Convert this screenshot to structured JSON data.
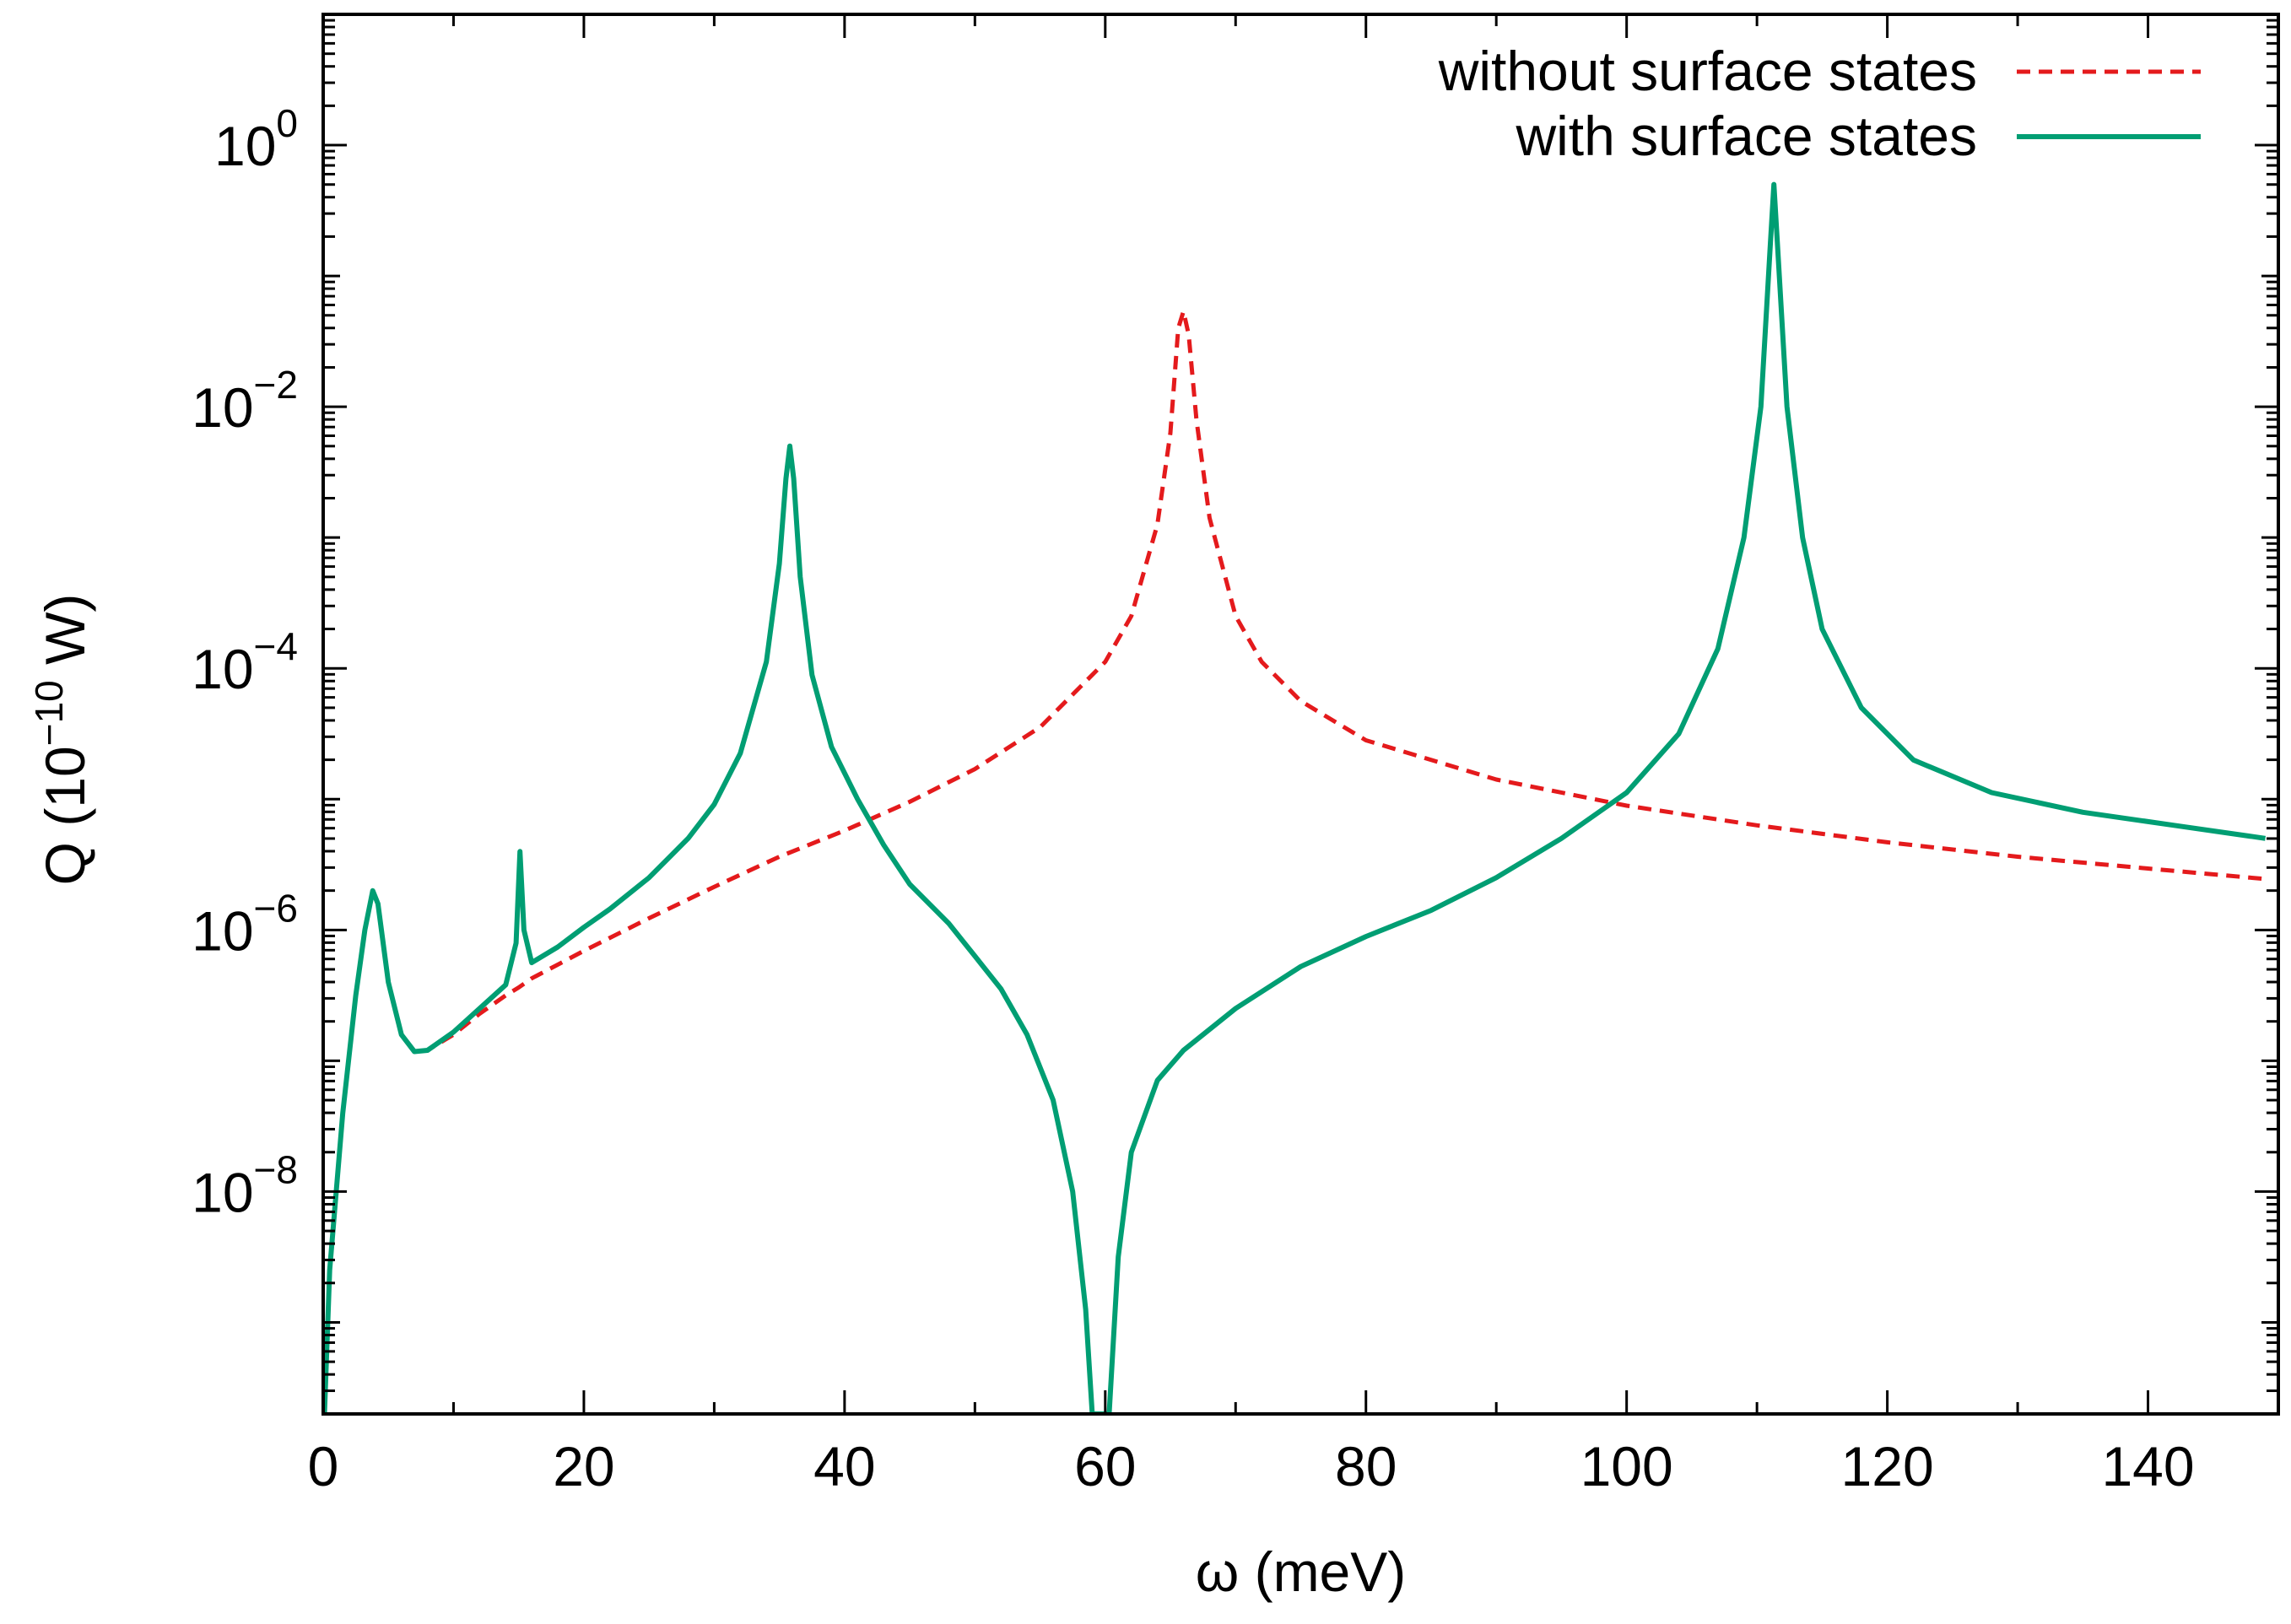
{
  "chart_data": {
    "type": "line",
    "title": "",
    "xlabel": "ω (meV)",
    "ylabel_parts": {
      "prefix": "Q (10",
      "exponent": "−10",
      "suffix": " W)"
    },
    "xlim": [
      0,
      150
    ],
    "ylim_log10": [
      -9.7,
      1.0
    ],
    "yscale": "log",
    "grid": false,
    "legend_position": "top-right",
    "x_ticks": [
      {
        "value": 0,
        "label": "0"
      },
      {
        "value": 20,
        "label": "20"
      },
      {
        "value": 40,
        "label": "40"
      },
      {
        "value": 60,
        "label": "60"
      },
      {
        "value": 80,
        "label": "80"
      },
      {
        "value": 100,
        "label": "100"
      },
      {
        "value": 120,
        "label": "120"
      },
      {
        "value": 140,
        "label": "140"
      }
    ],
    "y_ticks": [
      {
        "log10": 0,
        "base": "10",
        "exponent": "0"
      },
      {
        "log10": -2,
        "base": "10",
        "exponent": "−2"
      },
      {
        "log10": -4,
        "base": "10",
        "exponent": "−4"
      },
      {
        "log10": -6,
        "base": "10",
        "exponent": "−6"
      },
      {
        "log10": -8,
        "base": "10",
        "exponent": "−8"
      }
    ],
    "series": [
      {
        "name": "without surface states",
        "color": "#e41a1c",
        "style": "dashed",
        "points": [
          [
            0.1,
            -9.7
          ],
          [
            0.5,
            -8.6
          ],
          [
            1.5,
            -7.4
          ],
          [
            2.5,
            -6.5
          ],
          [
            3.2,
            -6.0
          ],
          [
            3.8,
            -5.7
          ],
          [
            4.2,
            -5.8
          ],
          [
            5.0,
            -6.4
          ],
          [
            6.0,
            -6.8
          ],
          [
            7.0,
            -6.93
          ],
          [
            8.0,
            -6.92
          ],
          [
            10.0,
            -6.8
          ],
          [
            12.0,
            -6.64
          ],
          [
            14.0,
            -6.5
          ],
          [
            15.0,
            -6.44
          ],
          [
            16.0,
            -6.37
          ],
          [
            20.0,
            -6.16
          ],
          [
            25.0,
            -5.91
          ],
          [
            30.0,
            -5.67
          ],
          [
            35.0,
            -5.44
          ],
          [
            40.0,
            -5.24
          ],
          [
            45.0,
            -5.02
          ],
          [
            50.0,
            -4.77
          ],
          [
            55.0,
            -4.45
          ],
          [
            60.0,
            -3.95
          ],
          [
            62.0,
            -3.6
          ],
          [
            64.0,
            -2.9
          ],
          [
            65.0,
            -2.2
          ],
          [
            65.6,
            -1.4
          ],
          [
            66.0,
            -1.27
          ],
          [
            66.4,
            -1.45
          ],
          [
            67.0,
            -2.1
          ],
          [
            68.0,
            -2.85
          ],
          [
            70.0,
            -3.6
          ],
          [
            72.0,
            -3.95
          ],
          [
            75.0,
            -4.25
          ],
          [
            80.0,
            -4.55
          ],
          [
            90.0,
            -4.85
          ],
          [
            100.0,
            -5.05
          ],
          [
            110.0,
            -5.2
          ],
          [
            120.0,
            -5.33
          ],
          [
            130.0,
            -5.44
          ],
          [
            140.0,
            -5.53
          ],
          [
            149.0,
            -5.61
          ]
        ]
      },
      {
        "name": "with surface states",
        "color": "#009e73",
        "style": "solid",
        "points": [
          [
            0.1,
            -9.7
          ],
          [
            0.5,
            -8.6
          ],
          [
            1.5,
            -7.4
          ],
          [
            2.5,
            -6.5
          ],
          [
            3.2,
            -6.0
          ],
          [
            3.8,
            -5.7
          ],
          [
            4.2,
            -5.8
          ],
          [
            5.0,
            -6.4
          ],
          [
            6.0,
            -6.8
          ],
          [
            7.0,
            -6.93
          ],
          [
            8.0,
            -6.92
          ],
          [
            10.0,
            -6.78
          ],
          [
            12.0,
            -6.6
          ],
          [
            14.0,
            -6.42
          ],
          [
            14.8,
            -6.1
          ],
          [
            15.1,
            -5.4
          ],
          [
            15.4,
            -6.0
          ],
          [
            16.0,
            -6.25
          ],
          [
            18.0,
            -6.13
          ],
          [
            20.0,
            -5.98
          ],
          [
            22.0,
            -5.84
          ],
          [
            25.0,
            -5.6
          ],
          [
            28.0,
            -5.3
          ],
          [
            30.0,
            -5.04
          ],
          [
            32.0,
            -4.65
          ],
          [
            34.0,
            -3.95
          ],
          [
            35.0,
            -3.2
          ],
          [
            35.5,
            -2.55
          ],
          [
            35.8,
            -2.3
          ],
          [
            36.1,
            -2.55
          ],
          [
            36.6,
            -3.3
          ],
          [
            37.5,
            -4.05
          ],
          [
            39.0,
            -4.6
          ],
          [
            41.0,
            -5.0
          ],
          [
            43.0,
            -5.35
          ],
          [
            45.0,
            -5.65
          ],
          [
            48.0,
            -5.95
          ],
          [
            50.0,
            -6.2
          ],
          [
            52.0,
            -6.45
          ],
          [
            54.0,
            -6.8
          ],
          [
            56.0,
            -7.3
          ],
          [
            57.5,
            -8.0
          ],
          [
            58.5,
            -8.9
          ],
          [
            59.0,
            -9.7
          ],
          [
            60.3,
            -9.7
          ],
          [
            61.0,
            -8.5
          ],
          [
            62.0,
            -7.7
          ],
          [
            64.0,
            -7.15
          ],
          [
            66.0,
            -6.92
          ],
          [
            70.0,
            -6.6
          ],
          [
            75.0,
            -6.28
          ],
          [
            80.0,
            -6.05
          ],
          [
            85.0,
            -5.85
          ],
          [
            90.0,
            -5.6
          ],
          [
            95.0,
            -5.3
          ],
          [
            100.0,
            -4.95
          ],
          [
            104.0,
            -4.5
          ],
          [
            107.0,
            -3.85
          ],
          [
            109.0,
            -3.0
          ],
          [
            110.3,
            -2.0
          ],
          [
            111.0,
            -0.8
          ],
          [
            111.3,
            -0.3
          ],
          [
            111.6,
            -0.8
          ],
          [
            112.3,
            -2.0
          ],
          [
            113.5,
            -3.0
          ],
          [
            115.0,
            -3.7
          ],
          [
            118.0,
            -4.3
          ],
          [
            122.0,
            -4.7
          ],
          [
            128.0,
            -4.95
          ],
          [
            135.0,
            -5.1
          ],
          [
            142.0,
            -5.2
          ],
          [
            149.0,
            -5.3
          ]
        ]
      }
    ]
  }
}
